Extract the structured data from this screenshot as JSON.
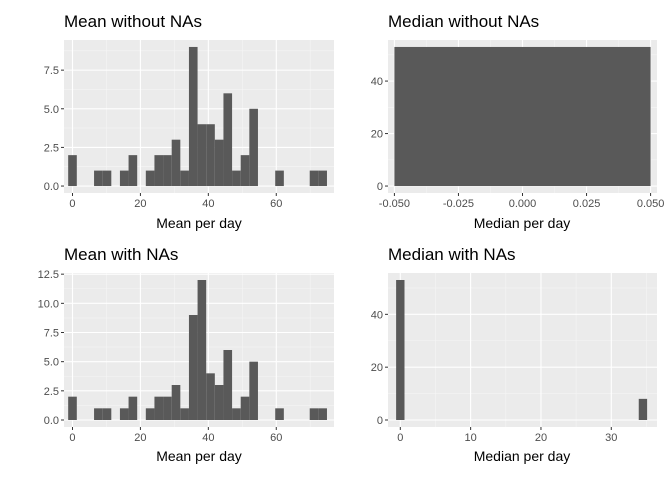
{
  "colors": {
    "panel_background": "#ebebeb",
    "grid_major": "#ffffff",
    "grid_minor": "#f5f5f5",
    "bar_fill": "#595959",
    "tick_mark": "#333333",
    "tick_text": "#4d4d4d"
  },
  "chart_data": [
    {
      "type": "bar",
      "title": "Mean without NAs",
      "xlabel": "Mean per day",
      "ylabel": "",
      "grid": true,
      "xlim": [
        -2.5,
        77.0
      ],
      "ylim": [
        -0.45,
        9.45
      ],
      "x_ticks": [
        0,
        20,
        40,
        60
      ],
      "y_ticks": [
        0.0,
        2.5,
        5.0,
        7.5
      ],
      "x_tick_labels": [
        "0",
        "20",
        "40",
        "60"
      ],
      "y_tick_labels": [
        "0.0",
        "2.5",
        "5.0",
        "7.5"
      ],
      "bin_width": 2.54,
      "bin_centers": [
        0.0,
        2.54,
        5.08,
        7.62,
        10.16,
        12.7,
        15.24,
        17.78,
        20.32,
        22.86,
        25.4,
        27.94,
        30.48,
        33.02,
        35.56,
        38.1,
        40.64,
        43.18,
        45.72,
        48.26,
        50.8,
        53.34,
        55.88,
        58.42,
        60.96,
        63.5,
        66.04,
        68.58,
        71.12,
        73.66
      ],
      "counts": [
        2,
        0,
        0,
        1,
        1,
        0,
        1,
        2,
        0,
        1,
        2,
        2,
        3,
        1,
        9,
        4,
        4,
        3,
        6,
        1,
        2,
        5,
        0,
        0,
        1,
        0,
        0,
        0,
        1,
        1
      ]
    },
    {
      "type": "bar",
      "title": "Median without NAs",
      "xlabel": "Median per day",
      "ylabel": "",
      "grid": true,
      "xlim": [
        -0.0525,
        0.0525
      ],
      "ylim": [
        -2.65,
        55.65
      ],
      "x_ticks": [
        -0.05,
        -0.025,
        0.0,
        0.025,
        0.05
      ],
      "y_ticks": [
        0,
        20,
        40
      ],
      "x_tick_labels": [
        "-0.050",
        "-0.025",
        "0.000",
        "0.025",
        "0.050"
      ],
      "y_tick_labels": [
        "0",
        "20",
        "40"
      ],
      "bin_width": 0.1,
      "bin_centers": [
        0.0
      ],
      "counts": [
        53
      ]
    },
    {
      "type": "bar",
      "title": "Mean with NAs",
      "xlabel": "Mean per day",
      "ylabel": "",
      "grid": true,
      "xlim": [
        -2.5,
        77.0
      ],
      "ylim": [
        -0.6,
        12.6
      ],
      "x_ticks": [
        0,
        20,
        40,
        60
      ],
      "y_ticks": [
        0.0,
        2.5,
        5.0,
        7.5,
        10.0,
        12.5
      ],
      "x_tick_labels": [
        "0",
        "20",
        "40",
        "60"
      ],
      "y_tick_labels": [
        "0.0",
        "2.5",
        "5.0",
        "7.5",
        "10.0",
        "12.5"
      ],
      "bin_width": 2.54,
      "bin_centers": [
        0.0,
        2.54,
        5.08,
        7.62,
        10.16,
        12.7,
        15.24,
        17.78,
        20.32,
        22.86,
        25.4,
        27.94,
        30.48,
        33.02,
        35.56,
        38.1,
        40.64,
        43.18,
        45.72,
        48.26,
        50.8,
        53.34,
        55.88,
        58.42,
        60.96,
        63.5,
        66.04,
        68.58,
        71.12,
        73.66
      ],
      "counts": [
        2,
        0,
        0,
        1,
        1,
        0,
        1,
        2,
        0,
        1,
        2,
        2,
        3,
        1,
        9,
        12,
        4,
        3,
        6,
        1,
        2,
        5,
        0,
        0,
        1,
        0,
        0,
        0,
        1,
        1
      ]
    },
    {
      "type": "bar",
      "title": "Median with NAs",
      "xlabel": "Median per day",
      "ylabel": "",
      "grid": true,
      "xlim": [
        -1.75,
        36.5
      ],
      "ylim": [
        -2.65,
        55.65
      ],
      "x_ticks": [
        0,
        10,
        20,
        30
      ],
      "y_ticks": [
        0,
        20,
        40
      ],
      "x_tick_labels": [
        "0",
        "10",
        "20",
        "30"
      ],
      "y_tick_labels": [
        "0",
        "20",
        "40"
      ],
      "bin_width": 1.19,
      "bin_centers": [
        0.0,
        34.5
      ],
      "counts": [
        53,
        8
      ]
    }
  ]
}
